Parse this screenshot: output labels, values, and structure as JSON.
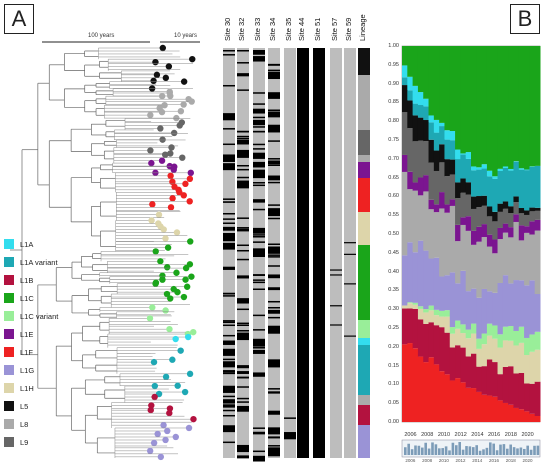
{
  "panels": {
    "a": "A",
    "b": "B"
  },
  "scale": {
    "left": "100 years",
    "right": "10 years"
  },
  "sites": [
    "Site 30",
    "Site 32",
    "Site 33",
    "Site 34",
    "Site 35",
    "Site 44",
    "Site 51",
    "Site 57",
    "Site 59",
    "Lineage"
  ],
  "legend": [
    {
      "label": "L1A",
      "color": "#33ddee"
    },
    {
      "label": "L1A variant",
      "color": "#1ea8b4"
    },
    {
      "label": "L1B",
      "color": "#b3123f"
    },
    {
      "label": "L1C",
      "color": "#1aa51a"
    },
    {
      "label": "L1C variant",
      "color": "#99ee99"
    },
    {
      "label": "L1E",
      "color": "#7b1590"
    },
    {
      "label": "L1F",
      "color": "#ee2222"
    },
    {
      "label": "L1G",
      "color": "#9a93d6"
    },
    {
      "label": "L1H",
      "color": "#ddd5aa"
    },
    {
      "label": "L5",
      "color": "#111111"
    },
    {
      "label": "L8",
      "color": "#aaaaaa"
    },
    {
      "label": "L9",
      "color": "#666666"
    }
  ],
  "chart_data": {
    "type": "area",
    "y_ticks": [
      "0.00",
      "0.05",
      "0.10",
      "0.15",
      "0.20",
      "0.25",
      "0.30",
      "0.35",
      "0.40",
      "0.45",
      "0.50",
      "0.55",
      "0.60",
      "0.65",
      "0.70",
      "0.75",
      "0.80",
      "0.85",
      "0.90",
      "0.95",
      "1.00"
    ],
    "x_ticks": [
      "2006",
      "2008",
      "2010",
      "2012",
      "2014",
      "2016",
      "2018",
      "2020"
    ],
    "ylim": [
      0,
      1
    ],
    "xlim": [
      2005,
      2021.5
    ],
    "histogram_ticks": [
      "2006",
      "2008",
      "2010",
      "2012",
      "2014",
      "2016",
      "2018",
      "2020"
    ]
  }
}
